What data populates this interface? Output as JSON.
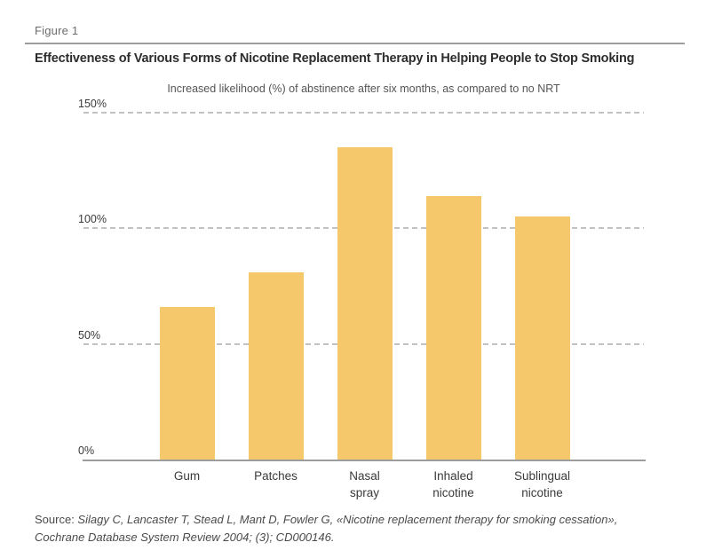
{
  "header": {
    "figure_label": "Figure 1",
    "title": "Effectiveness of Various Forms of Nicotine Replacement Therapy in Helping People to Stop Smoking"
  },
  "chart_data": {
    "type": "bar",
    "title": "Effectiveness of Various Forms of Nicotine Replacement Therapy in Helping People to Stop Smoking",
    "subtitle": "Increased likelihood (%) of abstinence after six months, as compared to no NRT",
    "categories": [
      "Gum",
      "Patches",
      "Nasal spray",
      "Inhaled nicotine",
      "Sublingual nicotine"
    ],
    "tick_labels": [
      "Gum",
      "Patches",
      "Nasal\nspray",
      "Inhaled\nnicotine",
      "Sublingual\nnicotine"
    ],
    "values": [
      66,
      81,
      135,
      114,
      105
    ],
    "unit": "%",
    "xlabel": "",
    "ylabel": "Increased likelihood (%) of abstinence",
    "ylim": [
      0,
      150
    ],
    "yticks": [
      0,
      50,
      100,
      150
    ],
    "ytick_labels": [
      "0%",
      "50%",
      "100%",
      "150%"
    ],
    "grid": "horizontal-dashed",
    "legend": "none",
    "bar_color": "#F5C96B"
  },
  "source": {
    "prefix": "Source: ",
    "line1": "Silagy C, Lancaster T, Stead L, Mant D, Fowler G, «Nicotine replacement therapy for smoking cessation»,",
    "line2": "Cochrane Database System Review 2004; (3); CD000146."
  },
  "colors": {
    "bar": "#F5C96B",
    "axis": "#9c9c9c",
    "gridline": "#c2c2c2",
    "header_rule": "#9e9e9e",
    "title_text": "#2d2d2d",
    "muted_text": "#6d6d6d"
  }
}
